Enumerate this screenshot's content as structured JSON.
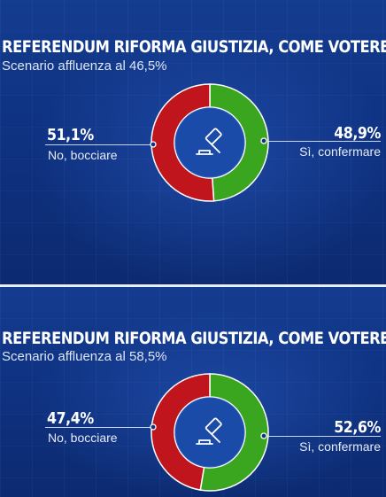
{
  "chart_data": [
    {
      "type": "pie",
      "title": "REFERENDUM RIFORMA GIUSTIZIA, COME VOTEREBBE?",
      "subtitle": "Scenario affluenza al 46,5%",
      "slices": [
        {
          "label": "No, bocciare",
          "value": 51.1,
          "display": "51,1%",
          "color": "#c0151c"
        },
        {
          "label": "Sì, confermare",
          "value": 48.9,
          "display": "48,9%",
          "color": "#3aa620"
        }
      ]
    },
    {
      "type": "pie",
      "title": "REFERENDUM RIFORMA GIUSTIZIA, COME VOTEREBBE?",
      "subtitle": "Scenario affluenza al 58,5%",
      "slices": [
        {
          "label": "No, bocciare",
          "value": 47.4,
          "display": "47,4%",
          "color": "#c0151c"
        },
        {
          "label": "Sì, confermare",
          "value": 52.6,
          "display": "52,6%",
          "color": "#3aa620"
        }
      ]
    }
  ],
  "icons": {
    "center": "gavel-icon"
  }
}
